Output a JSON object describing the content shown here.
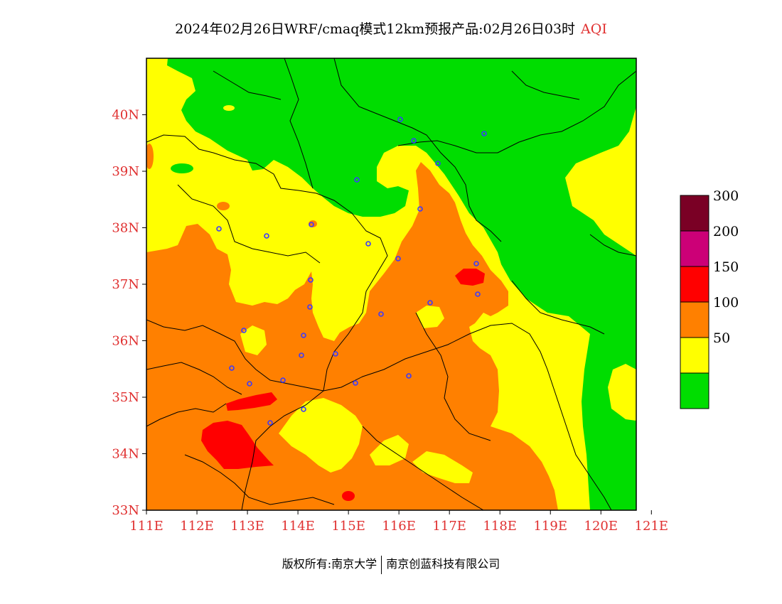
{
  "title": {
    "main": "2024年02月26日WRF/cmaq模式12km预报产品:02月26日03时",
    "variable": "AQI"
  },
  "axes": {
    "lat_ticks": [
      "40N",
      "39N",
      "38N",
      "37N",
      "36N",
      "35N",
      "34N",
      "33N"
    ],
    "lon_ticks": [
      "111E",
      "112E",
      "113E",
      "114E",
      "115E",
      "116E",
      "117E",
      "118E",
      "119E",
      "120E",
      "121E"
    ],
    "lat_range": [
      33,
      41
    ],
    "lon_range": [
      111,
      120.7
    ]
  },
  "legend": {
    "levels": [
      {
        "label": "",
        "color": "#00dd00"
      },
      {
        "label": "50",
        "color": "#ffff00"
      },
      {
        "label": "100",
        "color": "#ff8000"
      },
      {
        "label": "150",
        "color": "#ff0000"
      },
      {
        "label": "200",
        "color": "#cc0077"
      },
      {
        "label": "300",
        "color": "#7a0025"
      }
    ]
  },
  "footer": {
    "left": "版权所有:南京大学",
    "right": "南京创蓝科技有限公司"
  }
}
